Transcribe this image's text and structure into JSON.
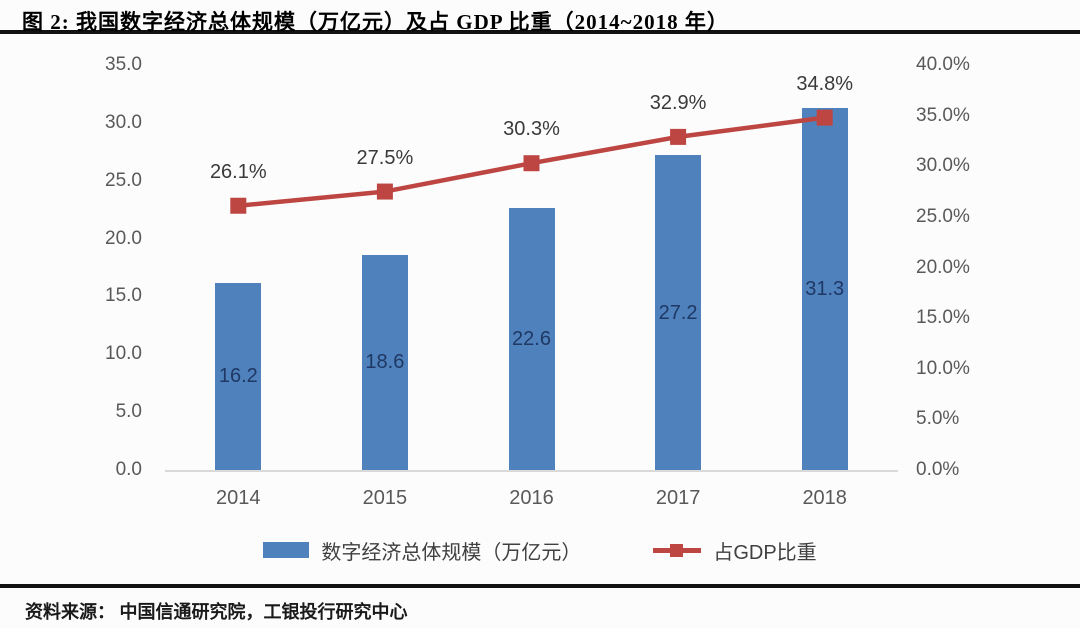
{
  "figure": {
    "title": "图 2: 我国数字经济总体规模（万亿元）及占 GDP 比重（2014~2018 年）",
    "source_label": "资料来源：",
    "source_text": "中国信通研究院，工银投行研究中心"
  },
  "chart_data": {
    "type": "bar+line combo",
    "categories": [
      "2014",
      "2015",
      "2016",
      "2017",
      "2018"
    ],
    "series": [
      {
        "name": "数字经济总体规模（万亿元）",
        "type": "bar",
        "axis": "left",
        "values": [
          16.2,
          18.6,
          22.6,
          27.2,
          31.3
        ],
        "value_labels": [
          "16.2",
          "18.6",
          "22.6",
          "27.2",
          "31.3"
        ],
        "color": "#4f81bd",
        "label_color": "#1f3864"
      },
      {
        "name": "占GDP比重",
        "type": "line",
        "axis": "right",
        "values": [
          26.1,
          27.5,
          30.3,
          32.9,
          34.8
        ],
        "value_labels": [
          "26.1%",
          "27.5%",
          "30.3%",
          "32.9%",
          "34.8%"
        ],
        "color": "#bd4642",
        "marker": "square"
      }
    ],
    "left_axis": {
      "min": 0,
      "max": 35,
      "step": 5,
      "tick_labels": [
        "0.0",
        "5.0",
        "10.0",
        "15.0",
        "20.0",
        "25.0",
        "30.0",
        "35.0"
      ]
    },
    "right_axis": {
      "min": 0,
      "max": 40,
      "step": 5,
      "tick_labels": [
        "0.0%",
        "5.0%",
        "10.0%",
        "15.0%",
        "20.0%",
        "25.0%",
        "30.0%",
        "35.0%",
        "40.0%"
      ]
    },
    "grid": "off",
    "legend_position": "bottom-center",
    "baseline_color": "#d9d9d9"
  }
}
